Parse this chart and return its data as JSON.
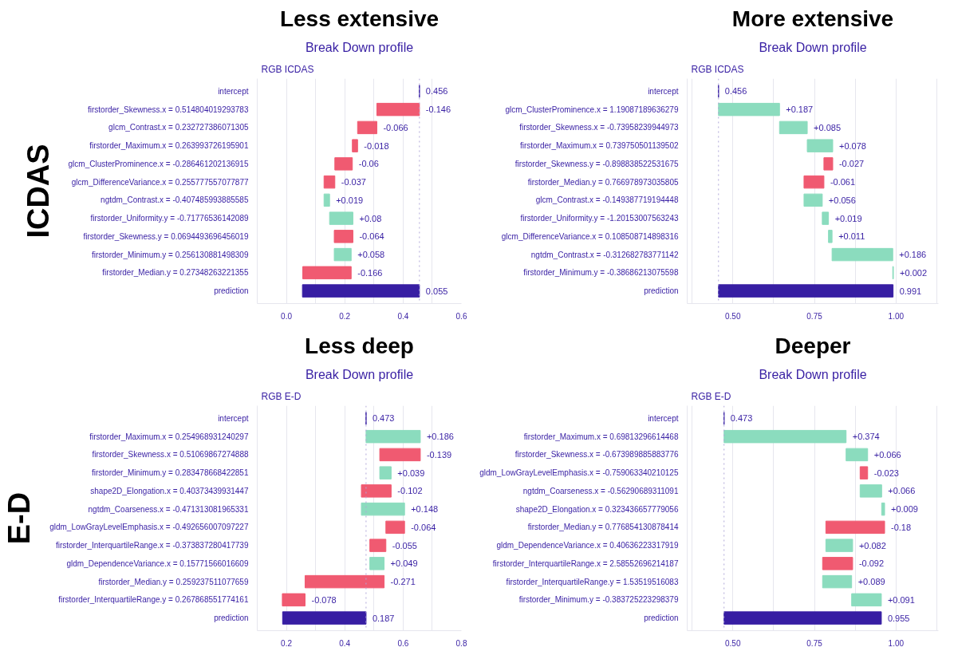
{
  "chart_data": [
    {
      "type": "bar",
      "orientation": "horizontal",
      "title": "Less extensive",
      "subtitle": "Break Down profile",
      "ylabel": "ICDAS",
      "annotations": [
        "RGB ICDAS"
      ],
      "categories": [
        "intercept",
        "firstorder_Skewness.x = 0.514804019293783",
        "glcm_Contrast.x = 0.232727386071305",
        "firstorder_Maximum.x = 0.263993726195901",
        "glcm_ClusterProminence.x = -0.286461202136915",
        "glcm_DifferenceVariance.x = 0.255777557077877",
        "ngtdm_Contrast.x = -0.407485993885585",
        "firstorder_Uniformity.y = -0.71776536142089",
        "firstorder_Skewness.y = 0.0694493696456019",
        "firstorder_Minimum.y = 0.256130881498309",
        "firstorder_Median.y = 0.27348263221355",
        "prediction"
      ],
      "base": [
        0.456,
        0.456,
        0.31,
        0.244,
        0.226,
        0.166,
        0.129,
        0.148,
        0.228,
        0.164,
        0.222,
        0.456
      ],
      "values": [
        0,
        -0.146,
        -0.066,
        -0.018,
        -0.06,
        -0.037,
        0.019,
        0.08,
        -0.064,
        0.058,
        -0.166,
        -0.401
      ],
      "value_labels": [
        "0.456",
        "-0.146",
        "-0.066",
        "-0.018",
        "-0.06",
        "-0.037",
        "+0.019",
        "+0.08",
        "-0.064",
        "+0.058",
        "-0.166",
        "0.055"
      ],
      "colors": [
        "#371ea3",
        "#f05a71",
        "#f05a71",
        "#f05a71",
        "#f05a71",
        "#f05a71",
        "#8bdcbe",
        "#8bdcbe",
        "#f05a71",
        "#8bdcbe",
        "#f05a71",
        "#371ea3"
      ],
      "xlim": [
        -0.1,
        0.6
      ],
      "xticks": [
        {
          "value": -0.1,
          "label": null
        },
        {
          "value": 0,
          "label": "0.0"
        },
        {
          "value": 0.1,
          "label": null
        },
        {
          "value": 0.2,
          "label": "0.2"
        },
        {
          "value": 0.3,
          "label": null
        },
        {
          "value": 0.4,
          "label": "0.4"
        },
        {
          "value": 0.5,
          "label": null
        },
        {
          "value": 0.6,
          "label": "0.6"
        }
      ],
      "ref_lines": [
        {
          "axis": "x",
          "value": 0.456,
          "line_style": "dotted"
        }
      ],
      "grid": "x"
    },
    {
      "type": "bar",
      "orientation": "horizontal",
      "title": "More extensive",
      "subtitle": "Break Down profile",
      "annotations": [
        "RGB ICDAS"
      ],
      "categories": [
        "intercept",
        "glcm_ClusterProminence.x = 1.19087189636279",
        "firstorder_Skewness.x = -0.73958239944973",
        "firstorder_Maximum.x = 0.739750501139502",
        "firstorder_Skewness.y = -0.898838522531675",
        "firstorder_Median.y = 0.766978973035805",
        "glcm_Contrast.x = -0.149387719194448",
        "firstorder_Uniformity.y = -1.20153007563243",
        "glcm_DifferenceVariance.x = 0.108508714898316",
        "ngtdm_Contrast.x = -0.312682783771142",
        "firstorder_Minimum.y = -0.38686213075598",
        "prediction"
      ],
      "base": [
        0.456,
        0.456,
        0.643,
        0.728,
        0.806,
        0.779,
        0.718,
        0.774,
        0.793,
        0.804,
        0.99,
        0.456
      ],
      "values": [
        0,
        0.187,
        0.085,
        0.078,
        -0.027,
        -0.061,
        0.056,
        0.019,
        0.011,
        0.186,
        0.002,
        0.535
      ],
      "value_labels": [
        "0.456",
        "+0.187",
        "+0.085",
        "+0.078",
        "-0.027",
        "-0.061",
        "+0.056",
        "+0.019",
        "+0.011",
        "+0.186",
        "+0.002",
        "0.991"
      ],
      "colors": [
        "#371ea3",
        "#8bdcbe",
        "#8bdcbe",
        "#8bdcbe",
        "#f05a71",
        "#f05a71",
        "#8bdcbe",
        "#8bdcbe",
        "#8bdcbe",
        "#8bdcbe",
        "#8bdcbe",
        "#371ea3"
      ],
      "xlim": [
        0.36,
        1.13
      ],
      "xticks": [
        {
          "value": 0.375,
          "label": null
        },
        {
          "value": 0.5,
          "label": "0.50"
        },
        {
          "value": 0.625,
          "label": null
        },
        {
          "value": 0.75,
          "label": "0.75"
        },
        {
          "value": 0.875,
          "label": null
        },
        {
          "value": 1.0,
          "label": "1.00"
        },
        {
          "value": 1.125,
          "label": null
        }
      ],
      "ref_lines": [
        {
          "axis": "x",
          "value": 0.456,
          "line_style": "dotted"
        }
      ],
      "grid": "x"
    },
    {
      "type": "bar",
      "orientation": "horizontal",
      "title": "Less deep",
      "subtitle": "Break Down profile",
      "ylabel": "E-D",
      "annotations": [
        "RGB E-D"
      ],
      "categories": [
        "intercept",
        "firstorder_Maximum.x = 0.254968931240297",
        "firstorder_Skewness.x = 0.51069867274888",
        "firstorder_Minimum.y = 0.283478668422851",
        "shape2D_Elongation.x = 0.40373439931447",
        "ngtdm_Coarseness.x = -0.471313081965331",
        "gldm_LowGrayLevelEmphasis.x = -0.492656007097227",
        "firstorder_InterquartileRange.x = -0.373837280417739",
        "gldm_DependenceVariance.x = 0.15771566016609",
        "firstorder_Median.y = 0.259237511077659",
        "firstorder_InterquartileRange.y = 0.267868551774161",
        "prediction"
      ],
      "base": [
        0.473,
        0.473,
        0.659,
        0.52,
        0.559,
        0.457,
        0.605,
        0.541,
        0.486,
        0.535,
        0.264,
        0.473
      ],
      "values": [
        0,
        0.186,
        -0.139,
        0.039,
        -0.102,
        0.148,
        -0.064,
        -0.055,
        0.049,
        -0.271,
        -0.078,
        -0.286
      ],
      "value_labels": [
        "0.473",
        "+0.186",
        "-0.139",
        "+0.039",
        "-0.102",
        "+0.148",
        "-0.064",
        "-0.055",
        "+0.049",
        "-0.271",
        "-0.078",
        "0.187"
      ],
      "colors": [
        "#371ea3",
        "#8bdcbe",
        "#f05a71",
        "#8bdcbe",
        "#f05a71",
        "#8bdcbe",
        "#f05a71",
        "#f05a71",
        "#8bdcbe",
        "#f05a71",
        "#f05a71",
        "#371ea3"
      ],
      "xlim": [
        0.1,
        0.8
      ],
      "xticks": [
        {
          "value": 0.1,
          "label": null
        },
        {
          "value": 0.2,
          "label": "0.2"
        },
        {
          "value": 0.3,
          "label": null
        },
        {
          "value": 0.4,
          "label": "0.4"
        },
        {
          "value": 0.5,
          "label": null
        },
        {
          "value": 0.6,
          "label": "0.6"
        },
        {
          "value": 0.7,
          "label": null
        },
        {
          "value": 0.8,
          "label": "0.8"
        }
      ],
      "ref_lines": [
        {
          "axis": "x",
          "value": 0.473,
          "line_style": "dotted"
        }
      ],
      "grid": "x"
    },
    {
      "type": "bar",
      "orientation": "horizontal",
      "title": "Deeper",
      "subtitle": "Break Down profile",
      "annotations": [
        "RGB E-D"
      ],
      "categories": [
        "intercept",
        "firstorder_Maximum.x = 0.69813296614468",
        "firstorder_Skewness.x = -0.673989885883776",
        "gldm_LowGrayLevelEmphasis.x = -0.759063340210125",
        "ngtdm_Coarseness.x = -0.56290689311091",
        "shape2D_Elongation.x = 0.323436657779056",
        "firstorder_Median.y = 0.776854130878414",
        "gldm_DependenceVariance.x = 0.40636223317919",
        "firstorder_InterquartileRange.x = 2.58552696214187",
        "firstorder_InterquartileRange.y = 1.53519516083",
        "firstorder_Minimum.y = -0.383725223298379",
        "prediction"
      ],
      "base": [
        0.473,
        0.473,
        0.847,
        0.913,
        0.89,
        0.956,
        0.965,
        0.785,
        0.867,
        0.775,
        0.864,
        0.473
      ],
      "values": [
        0,
        0.374,
        0.066,
        -0.023,
        0.066,
        0.009,
        -0.18,
        0.082,
        -0.092,
        0.089,
        0.091,
        0.482
      ],
      "value_labels": [
        "0.473",
        "+0.374",
        "+0.066",
        "-0.023",
        "+0.066",
        "+0.009",
        "-0.18",
        "+0.082",
        "-0.092",
        "+0.089",
        "+0.091",
        "0.955"
      ],
      "colors": [
        "#371ea3",
        "#8bdcbe",
        "#8bdcbe",
        "#f05a71",
        "#8bdcbe",
        "#8bdcbe",
        "#f05a71",
        "#8bdcbe",
        "#f05a71",
        "#8bdcbe",
        "#8bdcbe",
        "#371ea3"
      ],
      "xlim": [
        0.36,
        1.13
      ],
      "xticks": [
        {
          "value": 0.375,
          "label": null
        },
        {
          "value": 0.5,
          "label": "0.50"
        },
        {
          "value": 0.625,
          "label": null
        },
        {
          "value": 0.75,
          "label": "0.75"
        },
        {
          "value": 0.875,
          "label": null
        },
        {
          "value": 1.0,
          "label": "1.00"
        },
        {
          "value": 1.125,
          "label": null
        }
      ],
      "ref_lines": [
        {
          "axis": "x",
          "value": 0.473,
          "line_style": "dotted"
        }
      ],
      "grid": "x"
    }
  ]
}
